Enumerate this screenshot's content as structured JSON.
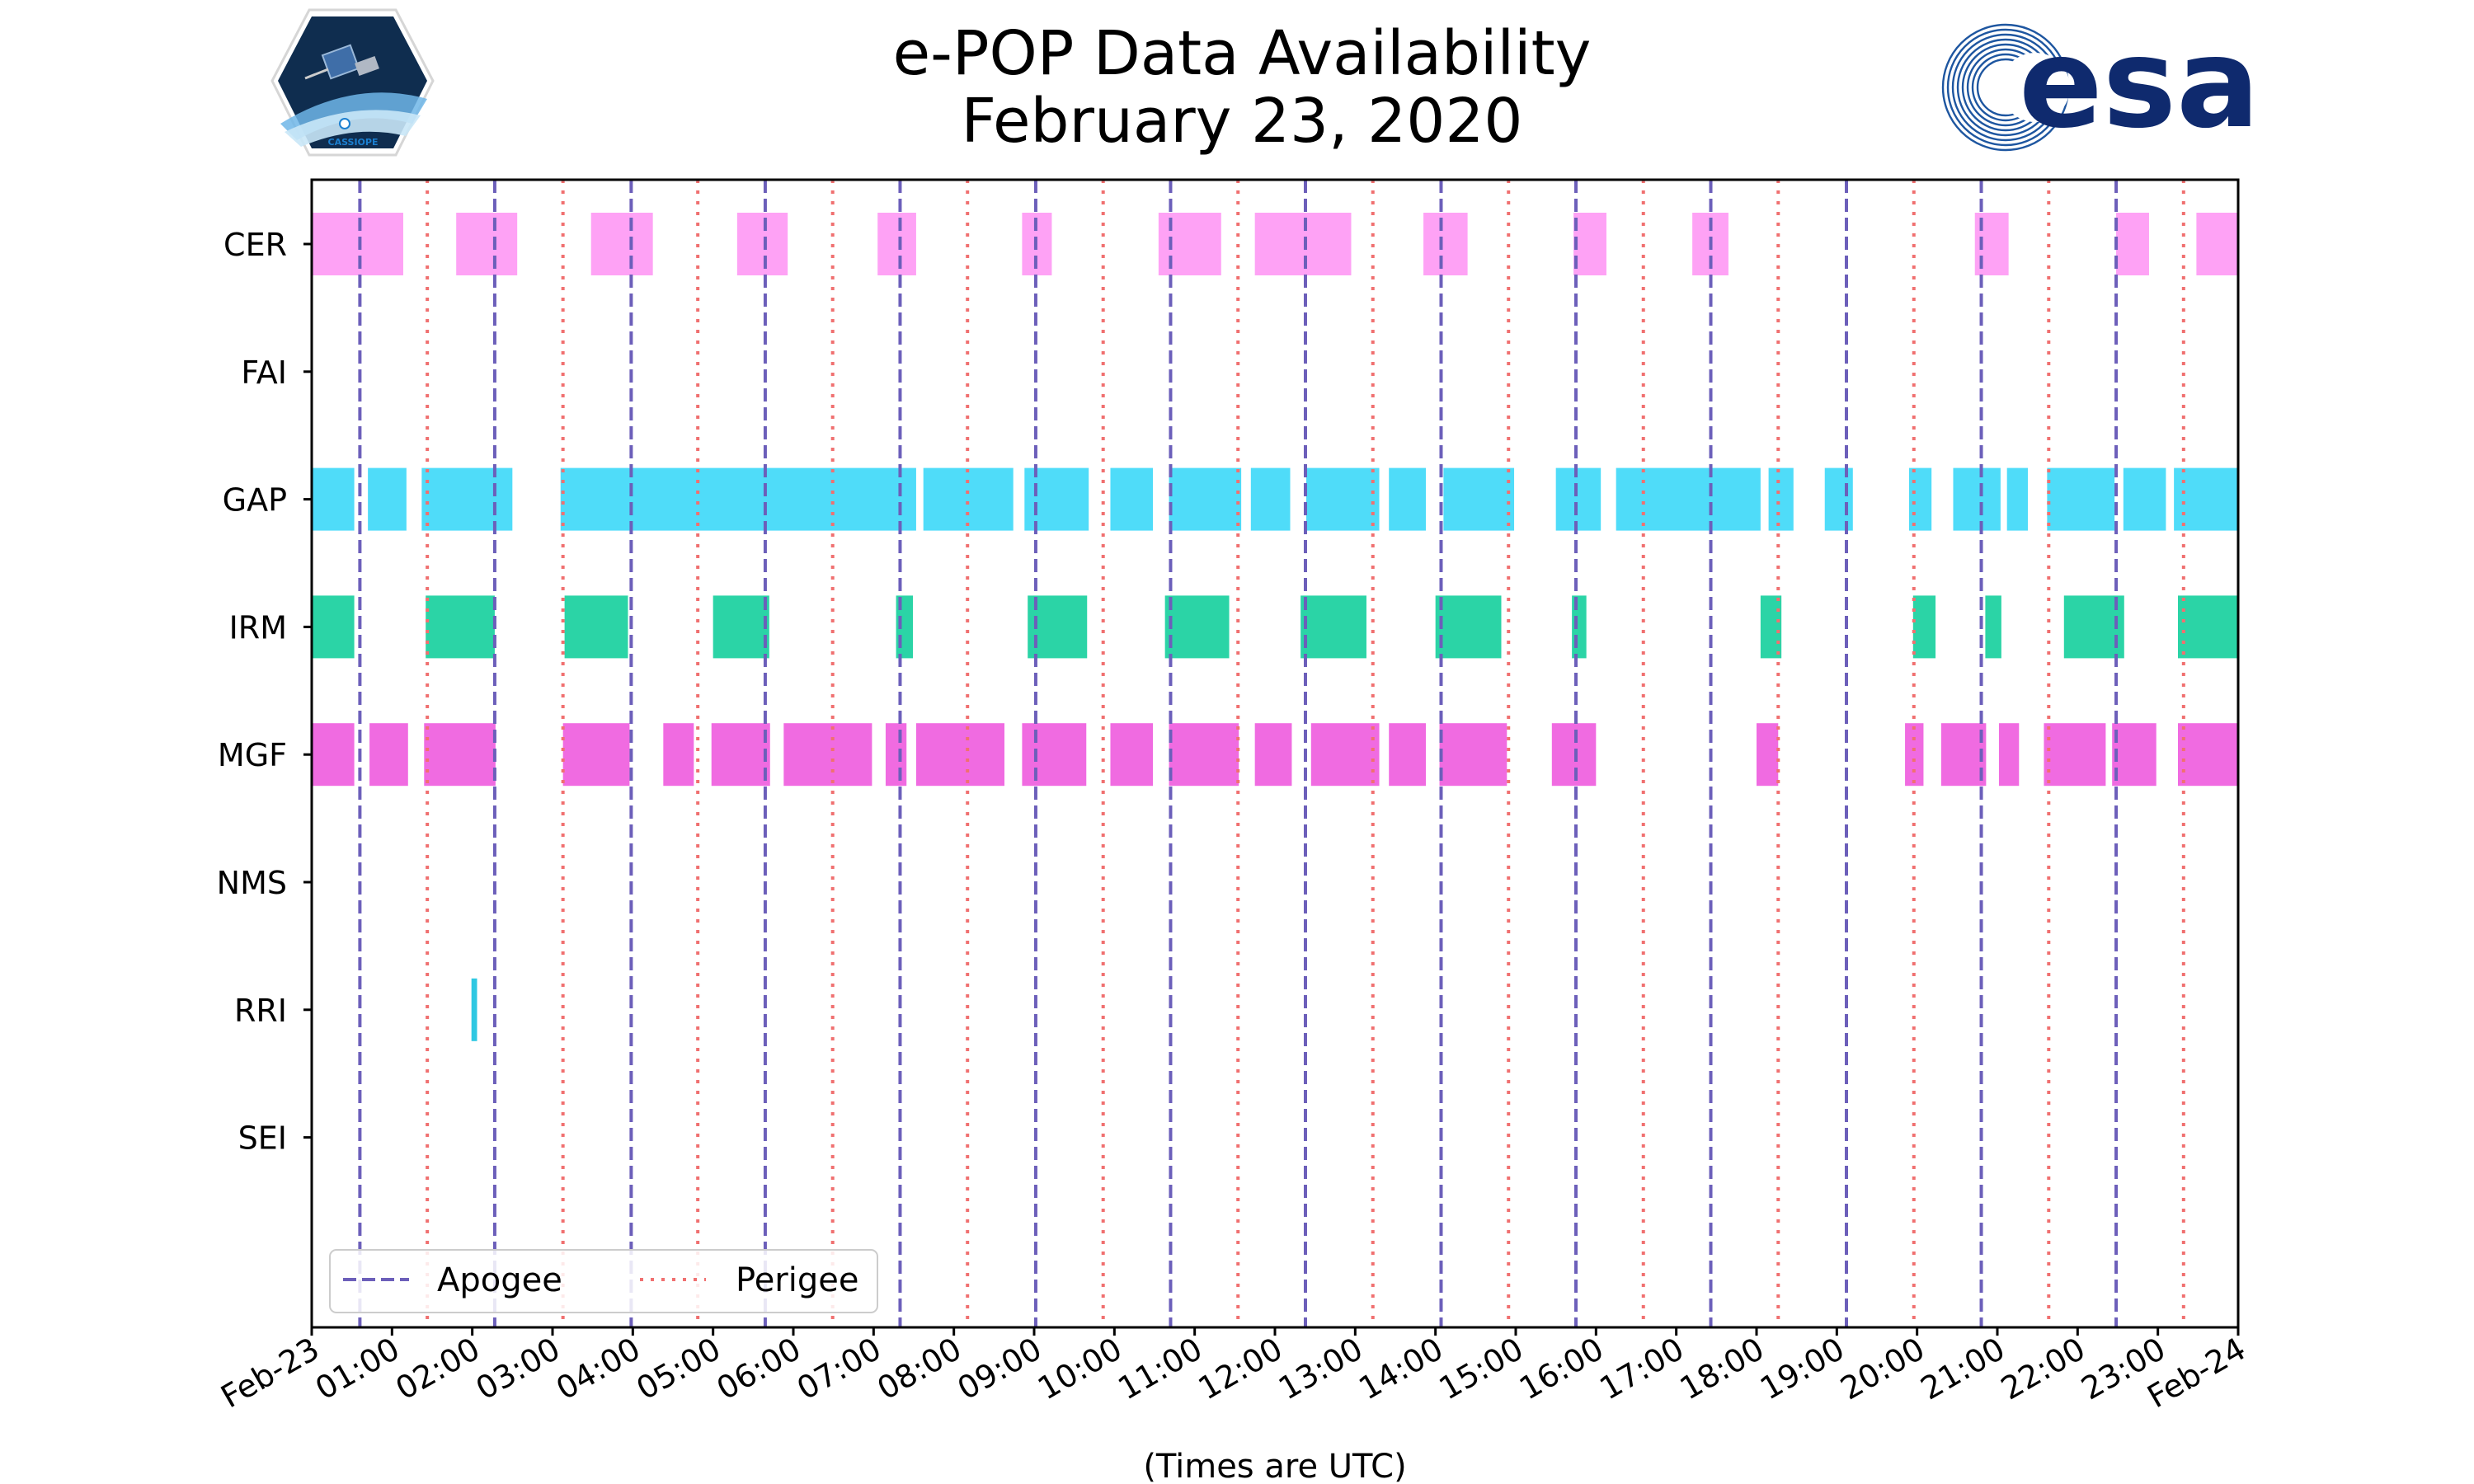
{
  "logos": {
    "left_mission": "CASSIOPE",
    "right_agency": "esa"
  },
  "colors": {
    "CER": "#fea2f5",
    "GAP": "#4fdcf9",
    "IRM": "#2bd4a6",
    "MGF": "#f06be1",
    "RRI": "#2ec8e2",
    "apogee": "#6c5fba",
    "perigee": "#f07070"
  },
  "chart_data": {
    "type": "timeline",
    "title": [
      "e-POP Data Availability",
      "February 23, 2020"
    ],
    "xlabel": "(Times are UTC)",
    "ylabel": "",
    "xlim_hours": [
      0,
      24
    ],
    "x_tick_hours": [
      0,
      1,
      2,
      3,
      4,
      5,
      6,
      7,
      8,
      9,
      10,
      11,
      12,
      13,
      14,
      15,
      16,
      17,
      18,
      19,
      20,
      21,
      22,
      23,
      24
    ],
    "x_tick_labels": [
      "Feb-23",
      "01:00",
      "02:00",
      "03:00",
      "04:00",
      "05:00",
      "06:00",
      "07:00",
      "08:00",
      "09:00",
      "10:00",
      "11:00",
      "12:00",
      "13:00",
      "14:00",
      "15:00",
      "16:00",
      "17:00",
      "18:00",
      "19:00",
      "20:00",
      "21:00",
      "22:00",
      "23:00",
      "Feb-24"
    ],
    "instruments": [
      "CER",
      "FAI",
      "GAP",
      "IRM",
      "MGF",
      "NMS",
      "RRI",
      "SEI"
    ],
    "availability_hours": {
      "CER": [
        [
          0.0,
          1.14
        ],
        [
          1.8,
          2.56
        ],
        [
          3.48,
          4.25
        ],
        [
          5.3,
          5.93
        ],
        [
          7.05,
          7.53
        ],
        [
          8.85,
          9.22
        ],
        [
          10.55,
          11.33
        ],
        [
          11.75,
          12.95
        ],
        [
          13.85,
          14.4
        ],
        [
          15.72,
          16.13
        ],
        [
          17.2,
          17.65
        ],
        [
          20.72,
          21.14
        ],
        [
          22.48,
          22.89
        ],
        [
          23.48,
          24.0
        ]
      ],
      "FAI": [],
      "GAP": [
        [
          0.0,
          0.53
        ],
        [
          0.7,
          1.18
        ],
        [
          1.37,
          2.5
        ],
        [
          3.1,
          7.53
        ],
        [
          7.62,
          8.74
        ],
        [
          8.88,
          9.68
        ],
        [
          9.95,
          10.48
        ],
        [
          10.68,
          11.58
        ],
        [
          11.7,
          12.19
        ],
        [
          12.39,
          13.3
        ],
        [
          13.42,
          13.88
        ],
        [
          14.1,
          14.98
        ],
        [
          15.5,
          16.06
        ],
        [
          16.25,
          18.05
        ],
        [
          18.15,
          18.46
        ],
        [
          18.85,
          19.2
        ],
        [
          19.9,
          20.18
        ],
        [
          20.45,
          21.04
        ],
        [
          21.12,
          21.38
        ],
        [
          21.62,
          22.46
        ],
        [
          22.57,
          23.1
        ],
        [
          23.2,
          24.0
        ]
      ],
      "IRM": [
        [
          0.0,
          0.53
        ],
        [
          1.42,
          2.28
        ],
        [
          3.15,
          3.94
        ],
        [
          5.0,
          5.7
        ],
        [
          7.28,
          7.49
        ],
        [
          8.92,
          9.66
        ],
        [
          10.63,
          11.43
        ],
        [
          12.32,
          13.14
        ],
        [
          14.0,
          14.82
        ],
        [
          15.7,
          15.88
        ],
        [
          18.05,
          18.31
        ],
        [
          19.95,
          20.23
        ],
        [
          20.85,
          21.05
        ],
        [
          21.83,
          22.58
        ],
        [
          23.25,
          24.0
        ]
      ],
      "MGF": [
        [
          0.0,
          0.53
        ],
        [
          0.72,
          1.2
        ],
        [
          1.4,
          2.29
        ],
        [
          3.13,
          3.96
        ],
        [
          4.38,
          4.76
        ],
        [
          4.98,
          5.71
        ],
        [
          5.88,
          6.98
        ],
        [
          7.15,
          7.41
        ],
        [
          7.53,
          8.63
        ],
        [
          8.85,
          9.65
        ],
        [
          9.95,
          10.48
        ],
        [
          10.68,
          11.55
        ],
        [
          11.75,
          12.21
        ],
        [
          12.45,
          13.3
        ],
        [
          13.42,
          13.88
        ],
        [
          14.05,
          14.89
        ],
        [
          15.45,
          16.0
        ],
        [
          18.0,
          18.27
        ],
        [
          19.85,
          20.08
        ],
        [
          20.3,
          20.86
        ],
        [
          21.02,
          21.27
        ],
        [
          21.58,
          22.35
        ],
        [
          22.43,
          22.98
        ],
        [
          23.25,
          24.0
        ]
      ],
      "NMS": [],
      "RRI": [
        [
          1.99,
          2.06
        ]
      ],
      "SEI": []
    },
    "apogee_hours": [
      0.6,
      2.28,
      3.98,
      5.65,
      7.33,
      9.02,
      10.7,
      12.38,
      14.07,
      15.75,
      17.43,
      19.12,
      20.8,
      22.48
    ],
    "perigee_hours": [
      1.44,
      3.13,
      4.81,
      6.49,
      8.17,
      9.86,
      11.54,
      13.22,
      14.91,
      16.59,
      18.27,
      19.96,
      21.64,
      23.32
    ],
    "legend": [
      {
        "label": "Apogee",
        "style": "dashed",
        "color": "#6c5fba"
      },
      {
        "label": "Perigee",
        "style": "dotted",
        "color": "#f07070"
      }
    ],
    "legend_position": "lower-left"
  }
}
